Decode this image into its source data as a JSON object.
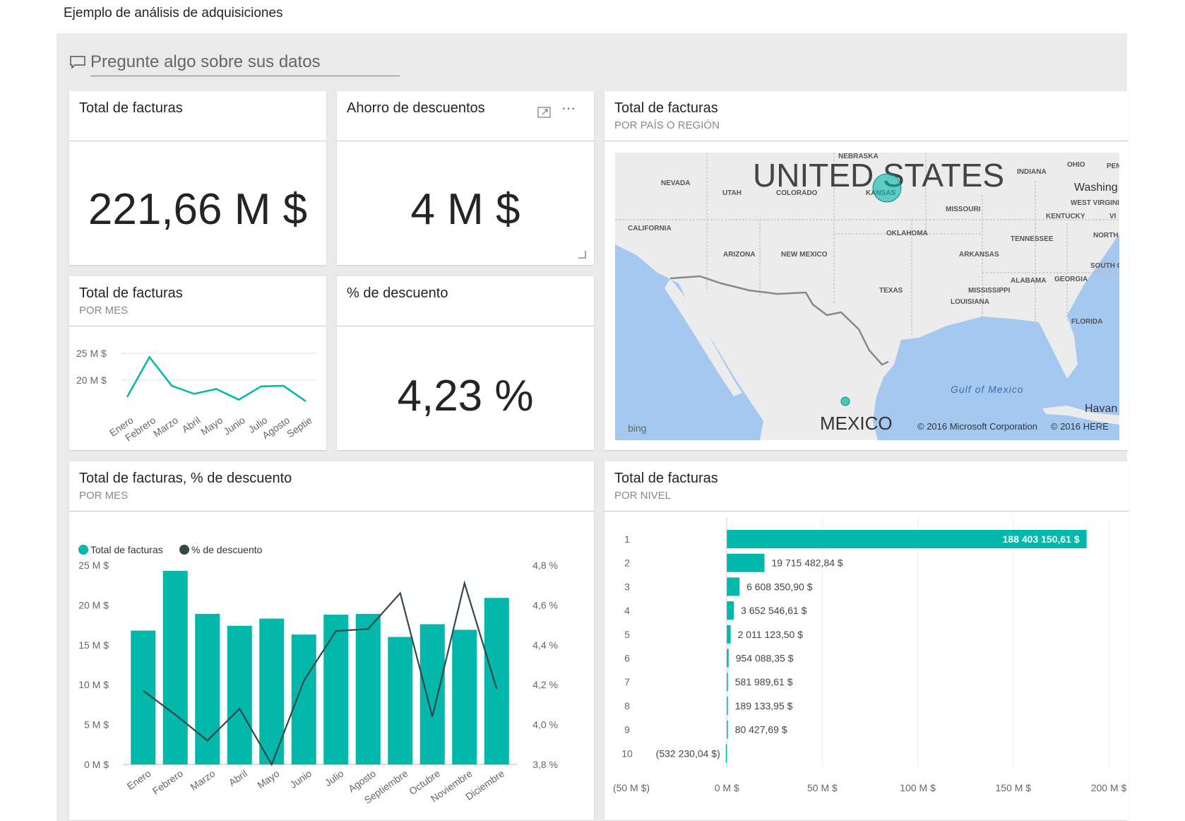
{
  "page": {
    "title": "Ejemplo de análisis de adquisiciones"
  },
  "qa": {
    "placeholder": "Pregunte algo sobre sus datos"
  },
  "colors": {
    "accent": "#01b8aa",
    "dark": "#374649",
    "map_water": "#a5c8f0",
    "map_land": "#ececec"
  },
  "tiles": {
    "total_facturas_card": {
      "title": "Total de facturas",
      "value": "221,66 M $"
    },
    "ahorro_card": {
      "title": "Ahorro de descuentos",
      "value": "4 M $",
      "icons": [
        "focus-mode-icon",
        "more-options-icon",
        "resize-handle-icon"
      ]
    },
    "descuento_card": {
      "title": "% de descuento",
      "value": "4,23 %"
    },
    "mini_line": {
      "title": "Total de facturas",
      "subtitle": "POR MES"
    },
    "map": {
      "title": "Total de facturas",
      "subtitle": "POR PAÍS O REGIÓN",
      "labels": {
        "us": "UNITED STATES",
        "mexico": "MEXICO",
        "gulf": "Gulf of Mexico",
        "havana": "Havan",
        "washington": "Washing",
        "nebraska": "NEBRASKA",
        "nevada": "NEVADA",
        "utah": "UTAH",
        "colorado": "COLORADO",
        "kansas": "KANSAS",
        "missouri": "MISSOURI",
        "california": "CALIFORNIA",
        "arizona": "ARIZONA",
        "new_mexico": "NEW MEXICO",
        "oklahoma": "OKLAHOMA",
        "arkansas": "ARKANSAS",
        "texas": "TEXAS",
        "mississippi": "MISSISSIPPI",
        "louisiana": "LOUISIANA",
        "alabama": "ALABAMA",
        "georgia": "GEORGIA",
        "florida": "FLORIDA",
        "tennessee": "TENNESSEE",
        "kentucky": "KENTUCKY",
        "west_virginia": "WEST VIRGINIA",
        "indiana": "INDIANA",
        "ohio": "OHIO",
        "north": "NORTH",
        "south": "SOUTH C",
        "pen": "PEN",
        "vi": "VI"
      },
      "bing": "bing",
      "copyright_ms": "© 2016 Microsoft Corporation",
      "copyright_here": "© 2016 HERE"
    },
    "combo": {
      "title": "Total de facturas, % de descuento",
      "subtitle": "POR MES"
    },
    "level_bar": {
      "title": "Total de facturas",
      "subtitle": "POR NIVEL"
    }
  },
  "chart_data": [
    {
      "type": "line",
      "name": "mini_line",
      "categories": [
        "Enero",
        "Febrero",
        "Marzo",
        "Abril",
        "Mayo",
        "Junio",
        "Julio",
        "Agosto",
        "Septie"
      ],
      "values": [
        16.8,
        24.3,
        18.9,
        17.4,
        18.3,
        16.3,
        18.8,
        18.9,
        16.0
      ],
      "y_ticks": [
        "25 M $",
        "20 M $"
      ],
      "ylim": [
        14,
        27
      ]
    },
    {
      "type": "bar",
      "name": "combo",
      "legend": [
        "Total de facturas",
        "% de descuento"
      ],
      "legend_position": "top-left",
      "categories": [
        "Enero",
        "Febrero",
        "Marzo",
        "Abril",
        "Mayo",
        "Junio",
        "Julio",
        "Agosto",
        "Septiembre",
        "Octubre",
        "Noviembre",
        "Diciembre"
      ],
      "series": [
        {
          "name": "Total de facturas",
          "type": "bar",
          "axis": "left",
          "values": [
            16.8,
            24.3,
            18.9,
            17.4,
            18.3,
            16.3,
            18.8,
            18.9,
            16.0,
            17.6,
            16.9,
            20.9
          ]
        },
        {
          "name": "% de descuento",
          "type": "line",
          "axis": "right",
          "values": [
            4.17,
            4.05,
            3.92,
            4.08,
            3.8,
            4.22,
            4.47,
            4.48,
            4.66,
            4.04,
            4.71,
            4.18
          ]
        }
      ],
      "y_left_ticks": [
        "25 M $",
        "20 M $",
        "15 M $",
        "10 M $",
        "5 M $",
        "0 M $"
      ],
      "y_right_ticks": [
        "4,8 %",
        "4,6 %",
        "4,4 %",
        "4,2 %",
        "4,0 %",
        "3,8 %"
      ],
      "ylim_left": [
        0,
        25
      ],
      "ylim_right": [
        3.8,
        4.8
      ]
    },
    {
      "type": "bar",
      "name": "level_bar",
      "orientation": "horizontal",
      "categories": [
        "1",
        "2",
        "3",
        "4",
        "5",
        "6",
        "7",
        "8",
        "9",
        "10"
      ],
      "values": [
        188403150.61,
        19715482.84,
        6608350.9,
        3652546.61,
        2011123.5,
        954088.35,
        581989.61,
        189133.95,
        80427.69,
        -532230.04
      ],
      "data_labels": [
        "188 403 150,61 $",
        "19 715 482,84 $",
        "6 608 350,90 $",
        "3 652 546,61 $",
        "2 011 123,50 $",
        "954 088,35 $",
        "581 989,61 $",
        "189 133,95 $",
        "80 427,69 $",
        "(532 230,04 $)"
      ],
      "x_ticks": [
        "(50 M $)",
        "0 M $",
        "50 M $",
        "100 M $",
        "150 M $",
        "200 M $"
      ],
      "xlim": [
        -50000000,
        200000000
      ]
    }
  ]
}
